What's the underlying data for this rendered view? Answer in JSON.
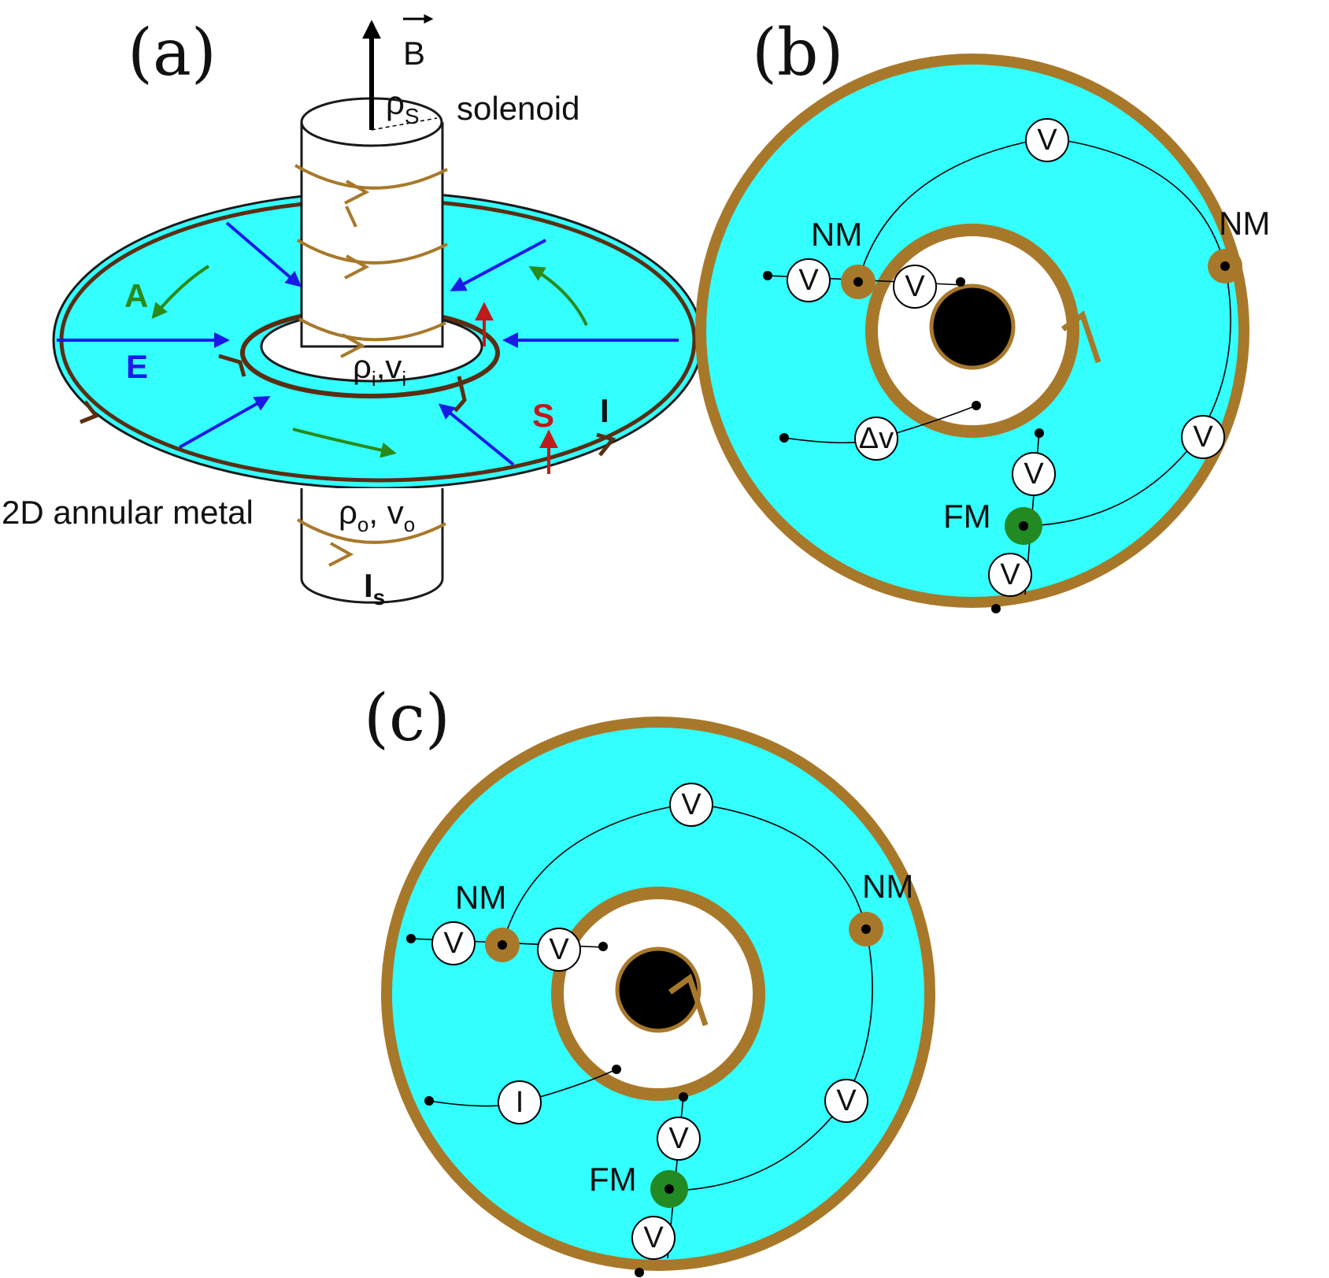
{
  "panel_a": {
    "label": "(a)",
    "field": "B",
    "solenoid_radius": "ρ",
    "solenoid_radius_sub": "S",
    "solenoid": "solenoid",
    "inner_radius": "ρ",
    "inner_radius_sub": "i",
    "inner_radius_v": ",v",
    "inner_radius_v_sub": "i",
    "outer_radius": "ρ",
    "outer_radius_sub": "o",
    "outer_radius_v": ", v",
    "outer_radius_v_sub": "o",
    "metal": "2D annular metal",
    "vector_potential": "A",
    "electric_field": "E",
    "spin": "S",
    "current": "I",
    "solenoid_current": "I",
    "solenoid_current_sub": "s"
  },
  "panel_b": {
    "label": "(b)",
    "nm_left": "NM",
    "nm_right": "NM",
    "fm": "FM",
    "meter_v": "V",
    "meter_dv": "Δv"
  },
  "panel_c": {
    "label": "(c)",
    "nm_left": "NM",
    "nm_right": "NM",
    "fm": "FM",
    "meter_v": "V",
    "meter_i": "I"
  },
  "colors": {
    "metal": "#33ffff",
    "electrode": "#a8782a",
    "solenoid": "#000000",
    "fm_contact": "#238a23",
    "e_field": "#1a1ae6",
    "a_field": "#2a8a1a",
    "spin": "#c01a1a",
    "current_loop": "#5a2e12"
  }
}
